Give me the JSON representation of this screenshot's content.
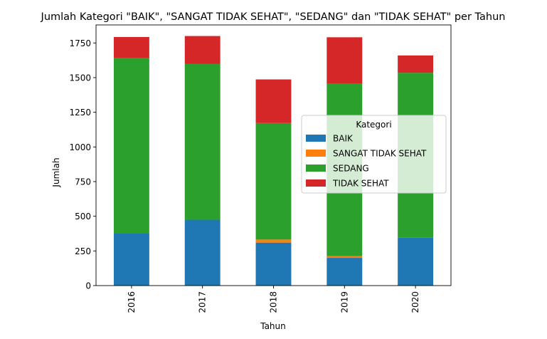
{
  "chart_data": {
    "type": "bar",
    "stacked": true,
    "title": "Jumlah Kategori \"BAIK\", \"SANGAT TIDAK SEHAT\", \"SEDANG\" dan \"TIDAK SEHAT\" per Tahun",
    "xlabel": "Tahun",
    "ylabel": "Jumlah",
    "categories": [
      "2016",
      "2017",
      "2018",
      "2019",
      "2020"
    ],
    "ylim": [
      0,
      1880
    ],
    "yticks": [
      0,
      250,
      500,
      750,
      1000,
      1250,
      1500,
      1750
    ],
    "grid": false,
    "legend": {
      "title": "Kategori",
      "placement": "center-right"
    },
    "series": [
      {
        "name": "BAIK",
        "color": "#1f77b4",
        "values": [
          375,
          475,
          310,
          200,
          345
        ]
      },
      {
        "name": "SANGAT TIDAK SEHAT",
        "color": "#ff7f0e",
        "values": [
          0,
          0,
          22,
          12,
          0
        ]
      },
      {
        "name": "SEDANG",
        "color": "#2ca02c",
        "values": [
          1265,
          1125,
          840,
          1243,
          1190
        ]
      },
      {
        "name": "TIDAK SEHAT",
        "color": "#d62728",
        "values": [
          153,
          200,
          315,
          336,
          125
        ]
      }
    ]
  }
}
